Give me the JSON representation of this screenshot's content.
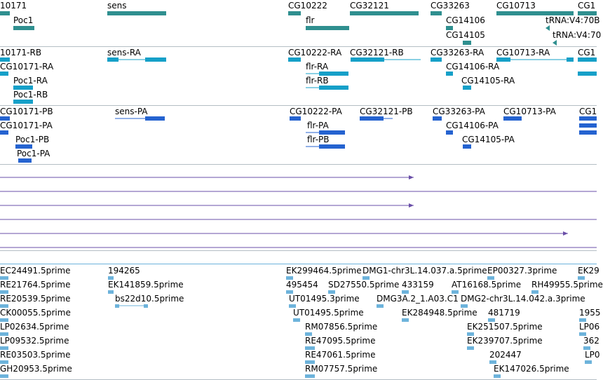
{
  "colors": {
    "gene": "#2f8f8f",
    "mrna": "#16a0c8",
    "cds": "#2563d0",
    "evidence": "#6a4fa8",
    "est": "#6db3db"
  },
  "tracks": {
    "gene": {
      "features": [
        {
          "label": "10171"
        },
        {
          "label": "Poc1"
        },
        {
          "label": "sens"
        },
        {
          "label": "CG10222"
        },
        {
          "label": "flr"
        },
        {
          "label": "CG32121"
        },
        {
          "label": "CG33263"
        },
        {
          "label": "CG14106"
        },
        {
          "label": "CG14105"
        },
        {
          "label": "CG10713"
        },
        {
          "label": "tRNA:V4:70B"
        },
        {
          "label": "tRNA:V4:70"
        },
        {
          "label": "CG1"
        }
      ]
    },
    "mrna": {
      "features": [
        {
          "label": "10171-RB"
        },
        {
          "label": "CG10171-RA"
        },
        {
          "label": "Poc1-RA"
        },
        {
          "label": "Poc1-RB"
        },
        {
          "label": "sens-RA"
        },
        {
          "label": "CG10222-RA"
        },
        {
          "label": "flr-RA"
        },
        {
          "label": "flr-RB"
        },
        {
          "label": "CG32121-RB"
        },
        {
          "label": "CG33263-RA"
        },
        {
          "label": "CG14106-RA"
        },
        {
          "label": "CG14105-RA"
        },
        {
          "label": "CG10713-RA"
        },
        {
          "label": "CG1"
        }
      ]
    },
    "cds": {
      "features": [
        {
          "label": "CG10171-PB"
        },
        {
          "label": "CG10171-PA"
        },
        {
          "label": "Poc1-PB"
        },
        {
          "label": "Poc1-PA"
        },
        {
          "label": "sens-PA"
        },
        {
          "label": "CG10222-PA"
        },
        {
          "label": "flr-PA"
        },
        {
          "label": "flr-PB"
        },
        {
          "label": "CG32121-PB"
        },
        {
          "label": "CG33263-PA"
        },
        {
          "label": "CG14106-PA"
        },
        {
          "label": "CG14105-PA"
        },
        {
          "label": "CG10713-PA"
        },
        {
          "label": "CG1"
        }
      ]
    },
    "est": {
      "features": [
        {
          "label": "EC24491.5prime"
        },
        {
          "label": "RE21764.5prime"
        },
        {
          "label": "RE20539.5prime"
        },
        {
          "label": "CK00055.5prime"
        },
        {
          "label": "LP02634.5prime"
        },
        {
          "label": "LP09532.5prime"
        },
        {
          "label": "RE03503.5prime"
        },
        {
          "label": "GH20953.5prime"
        },
        {
          "label": "194265"
        },
        {
          "label": "EK141859.5prime"
        },
        {
          "label": "bs22d10.5prime"
        },
        {
          "label": "EK299464.5prime"
        },
        {
          "label": "DMG1-chr3L.14.037.a.5prime"
        },
        {
          "label": "EP00327.3prime"
        },
        {
          "label": "EK29"
        },
        {
          "label": "495454"
        },
        {
          "label": "SD27550.5prime"
        },
        {
          "label": "433159"
        },
        {
          "label": "AT16168.5prime"
        },
        {
          "label": "RH49955.5prime"
        },
        {
          "label": "UT01495.3prime"
        },
        {
          "label": "DMG3A.2_1.A03.C1"
        },
        {
          "label": "DMG2-chr3L.14.042.a.3prime"
        },
        {
          "label": "UT01495.5prime"
        },
        {
          "label": "EK284948.5prime"
        },
        {
          "label": "481719"
        },
        {
          "label": "1955"
        },
        {
          "label": "RM07856.5prime"
        },
        {
          "label": "EK251507.5prime"
        },
        {
          "label": "LP06"
        },
        {
          "label": "RE47095.5prime"
        },
        {
          "label": "EK239707.5prime"
        },
        {
          "label": "362"
        },
        {
          "label": "RE47061.5prime"
        },
        {
          "label": "202447"
        },
        {
          "label": "LP0"
        },
        {
          "label": "RM07757.5prime"
        },
        {
          "label": "EK147026.5prime"
        }
      ]
    }
  }
}
